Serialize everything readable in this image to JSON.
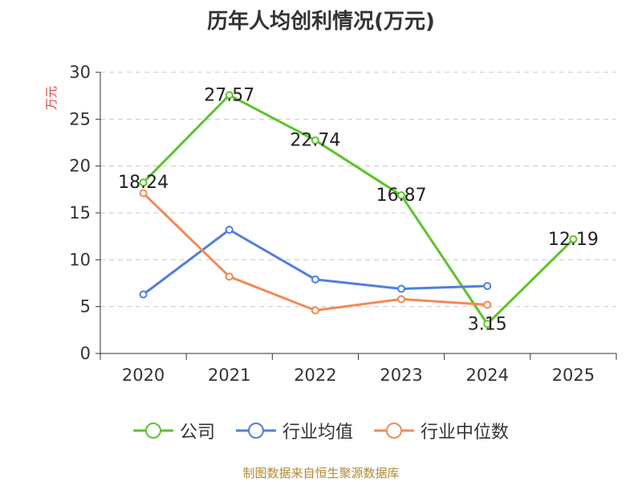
{
  "chart_data": {
    "type": "line",
    "title": "历年人均创利情况(万元)",
    "ylabel": "万元",
    "xlabel": "",
    "categories": [
      "2020",
      "2021",
      "2022",
      "2023",
      "2024",
      "2025"
    ],
    "ylim": [
      0,
      30
    ],
    "yticks": [
      0,
      5,
      10,
      15,
      20,
      25,
      30
    ],
    "grid": true,
    "legend_position": "bottom-center",
    "series": [
      {
        "name": "公司",
        "color": "#5cc42b",
        "values": [
          18.24,
          27.57,
          22.74,
          16.87,
          3.15,
          12.19
        ],
        "labels": [
          "18.24",
          "27.57",
          "22.74",
          "16.87",
          "3.15",
          "12.19"
        ]
      },
      {
        "name": "行业均值",
        "color": "#4f7fdc",
        "values": [
          6.3,
          13.2,
          7.9,
          6.9,
          7.2,
          null
        ],
        "labels": []
      },
      {
        "name": "行业中位数",
        "color": "#f28a56",
        "values": [
          17.1,
          8.2,
          4.6,
          5.8,
          5.2,
          null
        ],
        "labels": []
      }
    ]
  },
  "source": "制图数据来自恒生聚源数据库"
}
